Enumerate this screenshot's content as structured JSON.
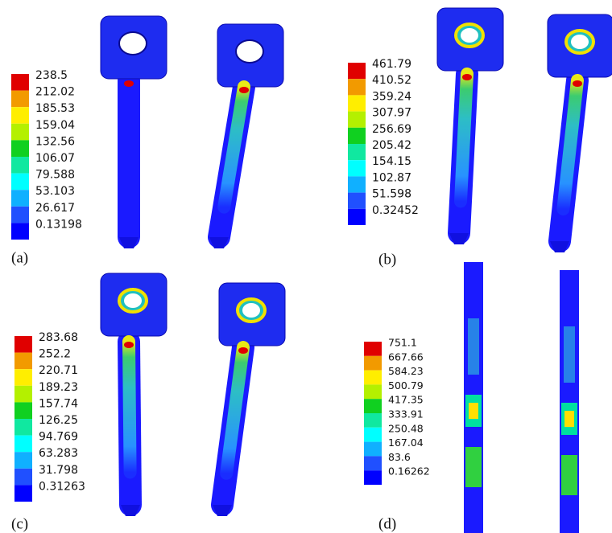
{
  "panels": [
    {
      "label": "(a)",
      "legend": [
        "238.5",
        "212.02",
        "185.53",
        "159.04",
        "132.56",
        "106.07",
        "79.588",
        "53.103",
        "26.617",
        "0.13198"
      ]
    },
    {
      "label": "(b)",
      "legend": [
        "461.79",
        "410.52",
        "359.24",
        "307.97",
        "256.69",
        "205.42",
        "154.15",
        "102.87",
        "51.598",
        "0.32452"
      ]
    },
    {
      "label": "(c)",
      "legend": [
        "283.68",
        "252.2",
        "220.71",
        "189.23",
        "157.74",
        "126.25",
        "94.769",
        "63.283",
        "31.798",
        "0.31263"
      ]
    },
    {
      "label": "(d)",
      "legend": [
        "751.1",
        "667.66",
        "584.23",
        "500.79",
        "417.35",
        "333.91",
        "250.48",
        "167.04",
        "83.6",
        "0.16262"
      ]
    }
  ]
}
